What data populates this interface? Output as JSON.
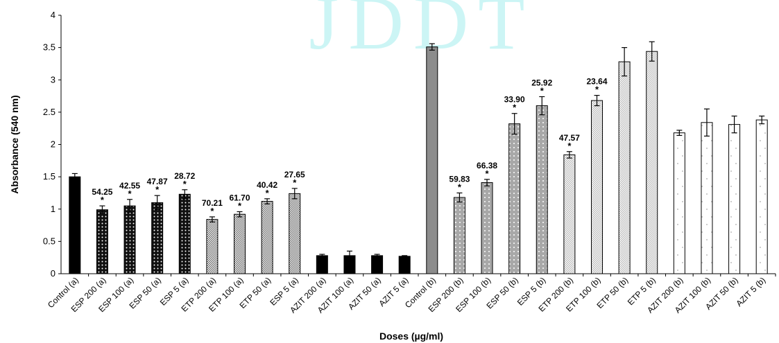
{
  "watermark": "JDDT",
  "chart_data": {
    "type": "bar",
    "title": "",
    "xlabel": "Doses (µg/ml)",
    "ylabel": "Absorbance (540 nm)",
    "ylim": [
      0,
      4
    ],
    "yticks": [
      "0",
      "0.5",
      "1",
      "1.5",
      "2",
      "2.5",
      "3",
      "3.5",
      "4"
    ],
    "grid": false,
    "legend": "none",
    "categories": [
      "Control (a)",
      "ESP 200 (a)",
      "ESP 100 (a)",
      "ESP 50 (a)",
      "ESP 5 (a)",
      "ETP 200 (a)",
      "ETP 100 (a)",
      "ETP 50 (a)",
      "ESP 5 (a)",
      "AZIT 200 (a)",
      "AZIT 100 (a)",
      "AZIT 50 (a)",
      "AZIT 5 (a)",
      "Control (b)",
      "ESP 200 (b)",
      "ESP 100 (b)",
      "ESP 50 (b)",
      "ESP 5 (b)",
      "ETP 200 (b)",
      "ETP 100 (b)",
      "ETP 50 (b)",
      "ETP 5 (b)",
      "AZIT 200 (b)",
      "AZIT 100 (b)",
      "AZIT 50 (b)",
      "AZIT 5 (b)"
    ],
    "values": [
      1.5,
      0.99,
      1.05,
      1.1,
      1.23,
      0.84,
      0.92,
      1.12,
      1.24,
      0.28,
      0.28,
      0.28,
      0.27,
      3.51,
      1.18,
      1.41,
      2.32,
      2.6,
      1.84,
      2.68,
      3.28,
      3.44,
      2.18,
      2.34,
      2.31,
      2.38
    ],
    "errors": [
      0.05,
      0.06,
      0.1,
      0.11,
      0.07,
      0.04,
      0.04,
      0.04,
      0.08,
      0.02,
      0.07,
      0.02,
      0.01,
      0.05,
      0.07,
      0.05,
      0.16,
      0.14,
      0.05,
      0.08,
      0.22,
      0.15,
      0.04,
      0.21,
      0.13,
      0.06
    ],
    "annotations": [
      "",
      "54.25",
      "42.55",
      "47.87",
      "28.72",
      "70.21",
      "61.70",
      "40.42",
      "27.65",
      "",
      "",
      "",
      "",
      "",
      "59.83",
      "66.38",
      "33.90",
      "25.92",
      "47.57",
      "23.64",
      "",
      "",
      "",
      "",
      "",
      ""
    ],
    "significance_marker": "*",
    "bar_styles": [
      "solid-black",
      "dots-black",
      "dots-black",
      "dots-black",
      "dots-black",
      "check-grey",
      "check-grey",
      "check-grey",
      "check-grey",
      "solid-black",
      "solid-black",
      "solid-black",
      "solid-black",
      "solid-grey",
      "dots-grey",
      "dots-grey",
      "dots-grey",
      "dots-grey",
      "check-light",
      "check-light",
      "check-light",
      "check-light",
      "sparse-white",
      "sparse-white",
      "sparse-white",
      "sparse-white"
    ],
    "colors": {
      "black": "#000000",
      "grey": "#8c8c8c",
      "watermark": "#ccf5f5"
    }
  }
}
